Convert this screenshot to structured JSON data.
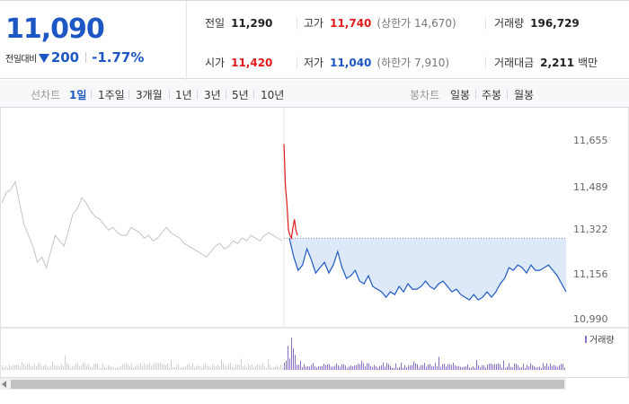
{
  "header": {
    "current_price": "11,090",
    "change_label": "전일대비",
    "change_value": "200",
    "change_rate": "-1.77%",
    "prev_close": {
      "label": "전일",
      "value": "11,290"
    },
    "open": {
      "label": "시가",
      "value": "11,420"
    },
    "high": {
      "label": "고가",
      "value": "11,740",
      "limit": "(상한가 14,670)"
    },
    "low": {
      "label": "저가",
      "value": "11,040",
      "limit": "(하한가 7,910)"
    },
    "volume": {
      "label": "거래량",
      "value": "196,729"
    },
    "trade_amount": {
      "label": "거래대금",
      "value": "2,211",
      "unit": "백만"
    }
  },
  "period_bar": {
    "line_chart_label": "선차트",
    "line_periods": [
      "1일",
      "1주일",
      "3개월",
      "1년",
      "3년",
      "5년",
      "10년"
    ],
    "active_period": "1일",
    "candle_chart_label": "봉차트",
    "candle_periods": [
      "일봉",
      "주봉",
      "월봉"
    ]
  },
  "chart_data": {
    "type": "line",
    "y_ticks": [
      "11,655",
      "11,489",
      "11,322",
      "11,156",
      "10,990"
    ],
    "ylim": [
      10990,
      11655
    ],
    "prev_close_ref": 11290,
    "volume_legend": "거래량",
    "colors": {
      "prev_day": "#c4c4c4",
      "rise": "#e21a1a",
      "fall": "#1d57c4",
      "fill": "#dde9f8",
      "volume_prev": "#cfcfcf",
      "volume_today": "#8a6fc6"
    },
    "prev_day_series": [
      11420,
      11460,
      11470,
      11500,
      11420,
      11340,
      11300,
      11260,
      11200,
      11220,
      11180,
      11240,
      11300,
      11280,
      11260,
      11320,
      11380,
      11400,
      11440,
      11420,
      11390,
      11370,
      11360,
      11340,
      11320,
      11330,
      11310,
      11300,
      11300,
      11330,
      11320,
      11310,
      11290,
      11300,
      11280,
      11290,
      11310,
      11330,
      11310,
      11300,
      11290,
      11270,
      11260,
      11250,
      11240,
      11230,
      11220,
      11240,
      11260,
      11270,
      11250,
      11260,
      11280,
      11270,
      11290,
      11280,
      11300,
      11290,
      11280,
      11300,
      11310,
      11300,
      11290,
      11280
    ],
    "today_rise_series": [
      11640,
      11480,
      11420,
      11320,
      11300,
      11290,
      11330,
      11360,
      11320,
      11300
    ],
    "today_fall_series": [
      11290,
      11220,
      11170,
      11190,
      11250,
      11210,
      11160,
      11180,
      11200,
      11160,
      11190,
      11240,
      11180,
      11140,
      11150,
      11170,
      11130,
      11120,
      11150,
      11110,
      11100,
      11090,
      11070,
      11090,
      11080,
      11110,
      11090,
      11120,
      11100,
      11100,
      11110,
      11130,
      11110,
      11100,
      11120,
      11130,
      11110,
      11090,
      11100,
      11080,
      11070,
      11060,
      11080,
      11060,
      11070,
      11090,
      11070,
      11090,
      11120,
      11140,
      11180,
      11170,
      11190,
      11180,
      11160,
      11190,
      11170,
      11170,
      11180,
      11190,
      11170,
      11150,
      11120,
      11090
    ]
  }
}
